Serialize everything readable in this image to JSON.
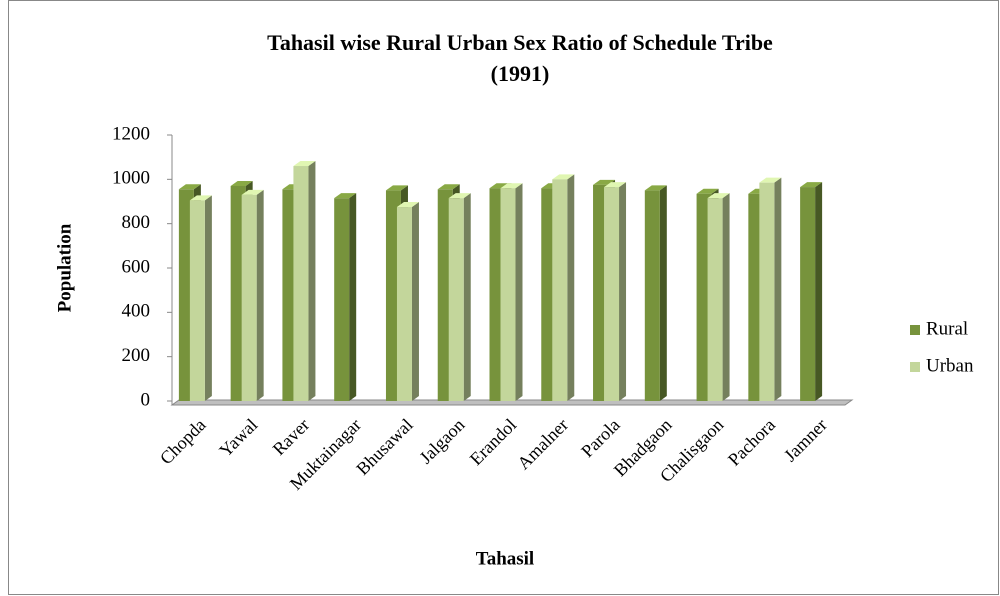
{
  "chart_data": {
    "type": "bar3d",
    "title": [
      "Tahasil wise Rural Urban Sex Ratio of Schedule Tribe",
      "(1991)"
    ],
    "x_label": "Tahasil",
    "y_label": "Population",
    "categories": [
      "Chopda",
      "Yawal",
      "Raver",
      "Muktainagar",
      "Bhusawal",
      "Jalgaon",
      "Erandol",
      "Amalner",
      "Parola",
      "Bhadgaon",
      "Chalisgaon",
      "Pachora",
      "Jamner"
    ],
    "series": [
      {
        "name": "Rural",
        "color": "#77933c",
        "values": [
          955,
          970,
          955,
          915,
          950,
          955,
          960,
          960,
          975,
          950,
          935,
          935,
          965
        ]
      },
      {
        "name": "Urban",
        "color": "#c3d69b",
        "values": [
          905,
          930,
          1060,
          null,
          875,
          915,
          960,
          1000,
          965,
          null,
          915,
          985,
          null
        ]
      }
    ],
    "ylim": [
      0,
      1200
    ],
    "yticks": [
      0,
      200,
      400,
      600,
      800,
      1000,
      1200
    ],
    "grid": false,
    "legend": "right"
  }
}
